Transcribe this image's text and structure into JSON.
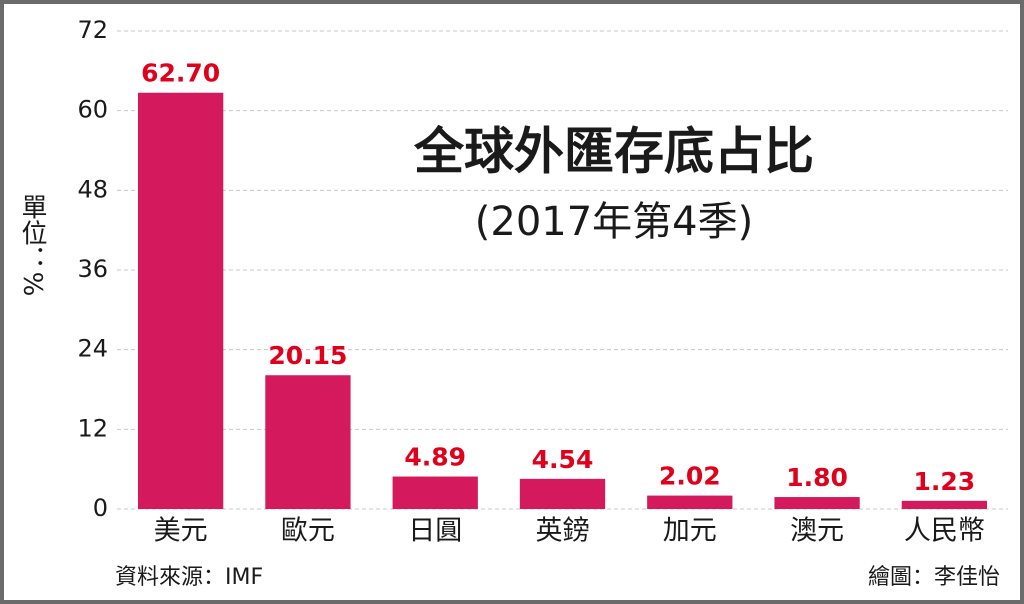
{
  "chart_data": {
    "type": "bar",
    "title": "全球外匯存底占比",
    "subtitle": "(2017年第4季)",
    "y_label": "單位：%",
    "categories": [
      "美元",
      "歐元",
      "日圓",
      "英鎊",
      "加元",
      "澳元",
      "人民幣"
    ],
    "values": [
      62.7,
      20.15,
      4.89,
      4.54,
      2.02,
      1.8,
      1.23
    ],
    "value_labels": [
      "62.70",
      "20.15",
      "4.89",
      "4.54",
      "2.02",
      "1.80",
      "1.23"
    ],
    "color": "#d41a5c",
    "ylim": [
      0,
      72
    ],
    "yticks": [
      0,
      12,
      24,
      36,
      48,
      60,
      72
    ],
    "grid": true,
    "source": "資料來源：IMF",
    "credit": "繪圖：李佳怡"
  }
}
